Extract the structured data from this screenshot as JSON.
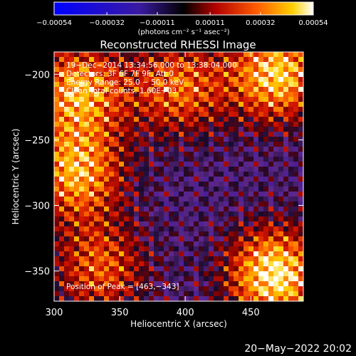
{
  "chart_data": {
    "type": "heatmap",
    "title": "Reconstructed RHESSI Image",
    "xlabel": "Heliocentric X (arcsec)",
    "ylabel": "Heliocentric Y (arcsec)",
    "xlim": [
      300,
      490
    ],
    "ylim": [
      -373,
      -183
    ],
    "x_ticks": [
      300,
      350,
      400,
      450
    ],
    "x_tick_labels": [
      "300",
      "350",
      "400",
      "450"
    ],
    "y_ticks": [
      -200,
      -250,
      -300,
      -350
    ],
    "y_tick_labels": [
      "−200",
      "−250",
      "−300",
      "−350"
    ],
    "colorbar": {
      "vmin": -0.00054,
      "vmax": 0.00054,
      "ticks": [
        -0.00054,
        -0.00032,
        -0.00011,
        0.00011,
        0.00032,
        0.00054
      ],
      "tick_labels": [
        "−0.00054",
        "−0.00032",
        "−0.00011",
        "0.00011",
        "0.00032",
        "0.00054"
      ],
      "unit_label": "(photons cm⁻² s⁻¹ asec⁻²)"
    },
    "annotations": [
      "19−Dec−2014 13:34:56.000 to 13:38:04.000",
      "Detectors: 3F 6F 7F 9F, Att 0",
      "Energy Range: 25.0 − 50.0 keV",
      "Clean     Total counts: 1.60E+03",
      "Position of Peak = [463,−343]"
    ],
    "peak": {
      "x": 463,
      "y": -343
    },
    "hotspots": [
      {
        "x": 468,
        "y": -353,
        "intensity": 1.0
      },
      {
        "x": 470,
        "y": -200,
        "intensity": 0.9
      },
      {
        "x": 318,
        "y": -212,
        "intensity": 0.8
      },
      {
        "x": 317,
        "y": -275,
        "intensity": 0.8
      },
      {
        "x": 395,
        "y": -210,
        "intensity": 0.65
      },
      {
        "x": 335,
        "y": -348,
        "intensity": 0.6
      }
    ],
    "colormap": "blue-black-red-yellow-white",
    "grid": false
  },
  "footer": {
    "date": "20−May−2022 20:02"
  }
}
